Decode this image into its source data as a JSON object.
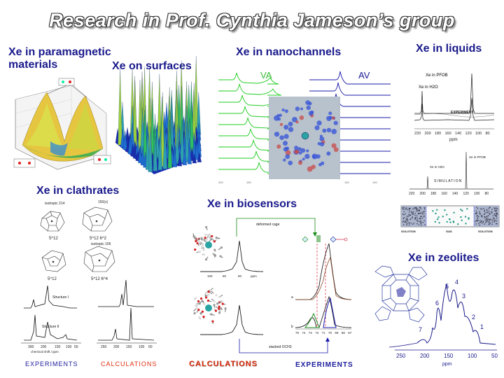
{
  "title": "Research in Prof. Cynthia Jameson’s group",
  "sections": {
    "paramagnetic": "Xe in paramagnetic materials",
    "surfaces": "Xe on surfaces",
    "nanochannels": "Xe in nanochannels",
    "liquids": "Xe in liquids",
    "clathrates": "Xe in clathrates",
    "biosensors": "Xe in biosensors",
    "zeolites": "Xe in zeolites"
  },
  "nanochannels": {
    "label_left": "VA",
    "label_right": "AV"
  },
  "liquids": {
    "exp_peak1": "Xe in PFOB",
    "exp_peak2": "Xe in H2O",
    "experiment": "EXPERIMENT",
    "axis_ticks": [
      "220",
      "200",
      "180",
      "160",
      "140",
      "120",
      "100",
      "80"
    ],
    "axis_unit": "ppm",
    "sim_peak1": "Xe in PFOB",
    "sim_peak2": "Xe in H2O",
    "simulation": "SIMULATION",
    "box_labels": [
      "SOLUTION",
      "GAS",
      "SOLUTION"
    ]
  },
  "clathrates": {
    "cage1_angle": "isotropic 214",
    "cage1_name": "5^12",
    "cage2_angle": "150(x)",
    "cage2_name": "5^12 6^2",
    "cage3_name": "5^12",
    "cage4_angle": "isotropic 106",
    "cage4_name": "5^12 6^4",
    "struct1": "Structure I",
    "struct2": "Structure II",
    "axis_label": "chemical shift / ppm",
    "experiments": "EXPERIMENTS",
    "calculations": "CALCULATIONS"
  },
  "biosensors": {
    "deformed_cage": "deformed cage",
    "stacked": "stacked OCH3",
    "calculations": "CALCULATIONS",
    "experiments": "EXPERIMENTS",
    "axis_left": [
      "100",
      "80",
      "60",
      "ppm"
    ],
    "axis_right": [
      "75",
      "74",
      "73",
      "72",
      "71",
      "70",
      "69",
      "68",
      "67"
    ],
    "trace_a": "a",
    "trace_b": "b"
  },
  "zeolites": {
    "peak_labels": [
      "7",
      "6",
      "5",
      "4",
      "3",
      "2",
      "1"
    ],
    "axis_ticks": [
      "250",
      "200",
      "150",
      "100",
      "50"
    ],
    "axis_unit": "ppm"
  },
  "colors": {
    "title_text": "#ffffff",
    "section_text": "#1a1a8c",
    "green_trace": "#22cc22",
    "blue_trace": "#1a1aaa",
    "red_caption": "#e03010"
  }
}
